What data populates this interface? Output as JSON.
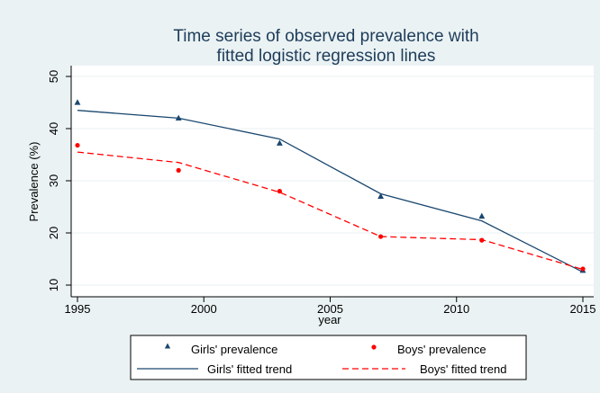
{
  "colors": {
    "background": "#eaf2f3",
    "plot_background": "#ffffff",
    "girls": "#1a476f",
    "boys": "#ff0000",
    "grid": "#eaf2f3",
    "title": "#1e3c5a"
  },
  "chart_data": {
    "type": "line",
    "title_lines": [
      "Time series of observed prevalence with",
      "fitted logistic regression lines"
    ],
    "xlabel": "year",
    "ylabel": "Prevalence (%)",
    "xlim": [
      1995,
      2015
    ],
    "ylim": [
      10,
      50
    ],
    "xticks": [
      1995,
      2000,
      2005,
      2010,
      2015
    ],
    "yticks": [
      10,
      20,
      30,
      40,
      50
    ],
    "grid": true,
    "legend_position": "bottom",
    "series": [
      {
        "name": "Girls' prevalence",
        "kind": "scatter",
        "marker": "triangle",
        "color": "#1a476f",
        "x": [
          1995,
          1999,
          2003,
          2007,
          2011,
          2015
        ],
        "y": [
          45.0,
          42.0,
          37.2,
          27.0,
          23.2,
          12.8
        ]
      },
      {
        "name": "Boys' prevalence",
        "kind": "scatter",
        "marker": "circle",
        "color": "#ff0000",
        "x": [
          1995,
          1999,
          2003,
          2007,
          2011,
          2015
        ],
        "y": [
          36.8,
          32.0,
          28.0,
          19.3,
          18.6,
          13.1
        ]
      },
      {
        "name": "Girls' fitted trend",
        "kind": "line",
        "style": "solid",
        "color": "#1a476f",
        "x": [
          1995,
          1999,
          2003,
          2007,
          2011,
          2015
        ],
        "y": [
          43.5,
          42.0,
          38.0,
          27.5,
          22.3,
          12.5
        ]
      },
      {
        "name": "Boys' fitted trend",
        "kind": "line",
        "style": "dashed",
        "color": "#ff0000",
        "x": [
          1995,
          1999,
          2003,
          2007,
          2011,
          2015
        ],
        "y": [
          35.5,
          33.5,
          27.8,
          19.3,
          18.7,
          13.0
        ]
      }
    ]
  }
}
